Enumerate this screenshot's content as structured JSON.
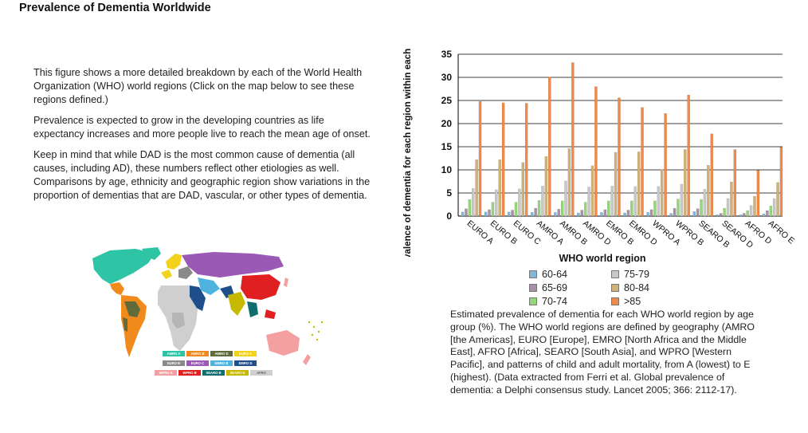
{
  "page": {
    "title": "Prevalence of Dementia Worldwide"
  },
  "intro": {
    "p1": "This figure shows a more detailed breakdown by each of the World Health Organization (WHO) world regions (Click on the map below to see these regions defined.)",
    "p2": "Prevalence is expected to grow in the developing countries as life expectancy increases and more people live to reach the mean age of onset.",
    "p3": "Keep in mind that while DAD is the most common cause of dementia (all causes, including AD), these numbers reflect other etiologies as well. Comparisons by age, ethnicity and geographic region show variations in the proportion of dementias that are DAD, vascular, or other types of dementia."
  },
  "map": {
    "keys": [
      {
        "label": "AMRO A",
        "color": "#2ec4a6"
      },
      {
        "label": "AMRO B",
        "color": "#f08a1c"
      },
      {
        "label": "AMRO D",
        "color": "#5f6b3a"
      },
      {
        "label": "EURO A",
        "color": "#f2d21a"
      },
      {
        "label": "EURO B",
        "color": "#8a8a8a"
      },
      {
        "label": "EURO C",
        "color": "#9b59b6"
      },
      {
        "label": "EMRO B",
        "color": "#4fb3e0"
      },
      {
        "label": "EMRO D",
        "color": "#1f4f8a"
      },
      {
        "label": "WPRO A",
        "color": "#f4a0a0"
      },
      {
        "label": "WPRO B",
        "color": "#e02020"
      },
      {
        "label": "SEARO B",
        "color": "#0f6e6e"
      },
      {
        "label": "SEARO D",
        "color": "#c7b800"
      },
      {
        "label": "AFRO",
        "color": "#cfcfcf"
      }
    ]
  },
  "chart_data": {
    "type": "bar",
    "title": "",
    "xlabel": "WHO world region",
    "ylabel": "Estimated prevalence of dementia for each region within each age group (%)",
    "ylim": [
      0,
      35
    ],
    "yticks": [
      0,
      5,
      10,
      15,
      20,
      25,
      30,
      35
    ],
    "grid": true,
    "categories": [
      "EURO A",
      "EURO B",
      "EURO C",
      "AMRO A",
      "AMRO B",
      "AMRO D",
      "EMRO B",
      "EMRO D",
      "WPRO A",
      "WPRO B",
      "SEARO B",
      "SEARO D",
      "AFRO D",
      "AFRO E"
    ],
    "series": [
      {
        "name": "60-64",
        "color": "#7fb8d6",
        "values": [
          0.9,
          0.9,
          0.9,
          0.8,
          0.8,
          0.7,
          0.8,
          0.7,
          0.8,
          0.6,
          1.0,
          0.3,
          0.3,
          0.5
        ]
      },
      {
        "name": "65-69",
        "color": "#a98fa8",
        "values": [
          1.6,
          1.4,
          1.3,
          1.7,
          1.5,
          1.3,
          1.4,
          1.3,
          1.4,
          1.7,
          1.6,
          0.6,
          0.6,
          1.2
        ]
      },
      {
        "name": "70-74",
        "color": "#96d67a",
        "values": [
          3.6,
          3.0,
          3.0,
          3.4,
          3.3,
          3.0,
          3.3,
          3.3,
          3.3,
          3.7,
          3.6,
          1.7,
          1.2,
          2.2
        ]
      },
      {
        "name": "75-79",
        "color": "#c8c8c8",
        "values": [
          6.0,
          5.7,
          5.9,
          6.5,
          7.6,
          6.3,
          6.5,
          6.4,
          6.4,
          6.9,
          5.8,
          3.8,
          2.3,
          3.8
        ]
      },
      {
        "name": "80-84",
        "color": "#cdb27a",
        "values": [
          12.2,
          12.2,
          11.6,
          12.9,
          14.6,
          10.9,
          13.8,
          13.9,
          10.1,
          14.4,
          11.0,
          7.4,
          4.3,
          7.3
        ]
      },
      {
        "name": ">85",
        "color": "#f08a4b",
        "values": [
          24.8,
          24.5,
          24.4,
          30.1,
          33.2,
          28.0,
          25.6,
          23.5,
          22.2,
          26.2,
          17.8,
          14.4,
          9.9,
          14.9
        ]
      }
    ],
    "legend_placement": "below"
  },
  "legend": {
    "items": [
      "60-64",
      "65-69",
      "70-74",
      "75-79",
      "80-84",
      ">85"
    ]
  },
  "caption": {
    "text": "Estimated prevalence of dementia for each WHO world region by age group (%). The WHO world regions are defined by geography (AMRO [the Americas], EURO [Europe], EMRO [North Africa and the Middle East], AFRO [Africa], SEARO [South Asia], and WPRO [Western Pacific], and patterns of child and adult mortality, from A (lowest) to E (highest). (Data extracted from Ferri et al. Global prevalence of dementia: a Delphi consensus study. Lancet 2005; 366: 2112-17)."
  }
}
